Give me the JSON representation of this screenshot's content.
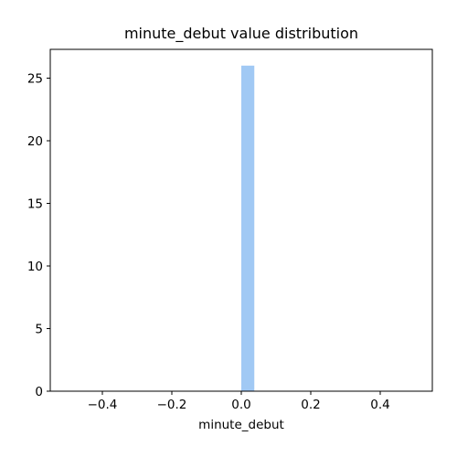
{
  "chart_data": {
    "type": "bar",
    "title": "minute_debut value distribution",
    "xlabel": "minute_debut",
    "ylabel": "",
    "xlim": [
      -0.55,
      0.55
    ],
    "ylim": [
      0,
      27.3
    ],
    "x_ticks": [
      -0.4,
      -0.2,
      0.0,
      0.2,
      0.4
    ],
    "x_tick_labels": [
      "−0.4",
      "−0.2",
      "0.0",
      "0.2",
      "0.4"
    ],
    "y_ticks": [
      0,
      5,
      10,
      15,
      20,
      25
    ],
    "y_tick_labels": [
      "0",
      "5",
      "10",
      "15",
      "20",
      "25"
    ],
    "bins": [
      {
        "x0": 0.0,
        "x1": 0.0375,
        "count": 26
      }
    ],
    "bar_color": "#a1c9f4",
    "grid": false,
    "legend": "none"
  }
}
